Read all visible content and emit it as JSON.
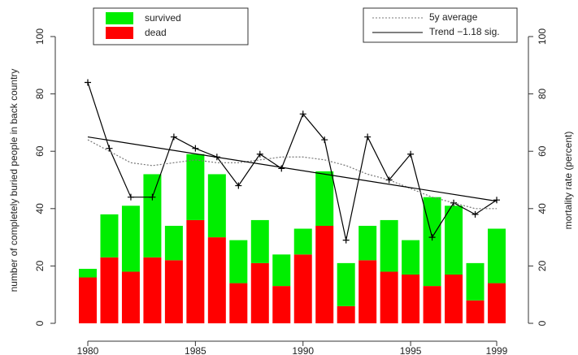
{
  "chart_data": {
    "type": "bar",
    "ylabel": "number of completely buried people in back country",
    "y2label": "mortality rate (percent)",
    "x": [
      1980,
      1981,
      1982,
      1983,
      1984,
      1985,
      1986,
      1987,
      1988,
      1989,
      1990,
      1991,
      1992,
      1993,
      1994,
      1995,
      1996,
      1997,
      1998,
      1999
    ],
    "xlim": [
      1980,
      1999
    ],
    "xticks": [
      1980,
      1985,
      1990,
      1995,
      1999
    ],
    "ylim": [
      0,
      100
    ],
    "yticks": [
      0,
      20,
      40,
      60,
      80,
      100
    ],
    "y2lim": [
      0,
      100
    ],
    "y2ticks": [
      0,
      20,
      40,
      60,
      80,
      100
    ],
    "stacked": true,
    "series": [
      {
        "name": "dead",
        "color": "#ff0000",
        "values": [
          16,
          23,
          18,
          23,
          22,
          36,
          30,
          14,
          21,
          13,
          24,
          34,
          6,
          22,
          18,
          17,
          13,
          17,
          8,
          14
        ]
      },
      {
        "name": "survived",
        "color": "#00ee00",
        "values": [
          3,
          15,
          23,
          29,
          12,
          23,
          22,
          15,
          15,
          11,
          9,
          19,
          15,
          12,
          18,
          12,
          31,
          24,
          13,
          19
        ]
      },
      {
        "type": "line",
        "axis": "y2",
        "color": "#000000",
        "marker": "+",
        "values": [
          84,
          61,
          44,
          44,
          65,
          61,
          58,
          48,
          59,
          54,
          73,
          64,
          29,
          65,
          50,
          59,
          30,
          42,
          38,
          43
        ]
      },
      {
        "name": "5y average",
        "type": "line",
        "axis": "y2",
        "color": "#777777",
        "dash": true,
        "values": [
          64,
          60,
          56,
          55,
          56,
          57,
          56,
          56,
          57,
          58,
          58,
          57,
          55,
          52,
          50,
          47,
          44,
          42,
          40,
          40
        ]
      },
      {
        "name": "Trend −1.18 sig.",
        "type": "line",
        "axis": "y2",
        "color": "#000000",
        "x": [
          1980,
          1999
        ],
        "values": [
          65,
          42.6
        ]
      }
    ]
  }
}
